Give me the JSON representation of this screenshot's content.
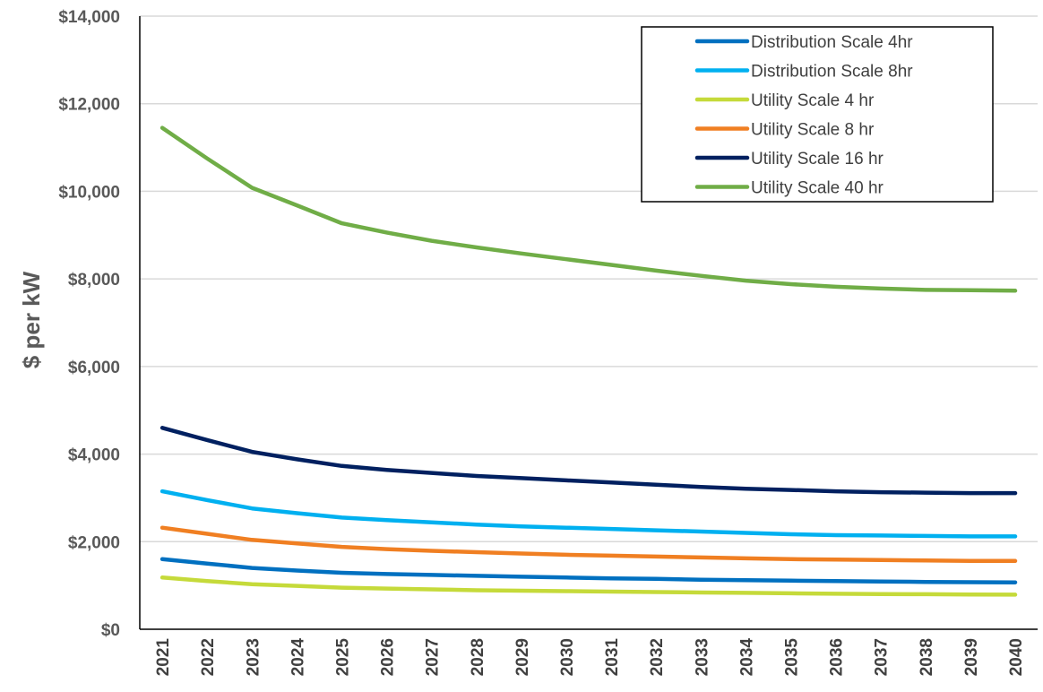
{
  "chart_data": {
    "type": "line",
    "title": "",
    "xlabel": "",
    "ylabel": "$ per kW",
    "ylim": [
      0,
      14000
    ],
    "y_ticks": [
      0,
      2000,
      4000,
      6000,
      8000,
      10000,
      12000,
      14000
    ],
    "y_tick_labels": [
      "$0",
      "$2,000",
      "$4,000",
      "$6,000",
      "$8,000",
      "$10,000",
      "$12,000",
      "$14,000"
    ],
    "x": [
      "2021",
      "2022",
      "2023",
      "2024",
      "2025",
      "2026",
      "2027",
      "2028",
      "2029",
      "2030",
      "2031",
      "2032",
      "2033",
      "2034",
      "2035",
      "2036",
      "2037",
      "2038",
      "2039",
      "2040"
    ],
    "grid": true,
    "legend_position": "top-right",
    "series": [
      {
        "name": "Distribution Scale 4hr",
        "color": "#0070C0",
        "values": [
          1600,
          1500,
          1400,
          1340,
          1290,
          1260,
          1240,
          1220,
          1200,
          1180,
          1160,
          1150,
          1130,
          1120,
          1110,
          1100,
          1090,
          1080,
          1075,
          1070
        ]
      },
      {
        "name": "Distribution Scale 8hr",
        "color": "#00B0F0",
        "values": [
          3150,
          2950,
          2760,
          2650,
          2550,
          2490,
          2440,
          2390,
          2350,
          2320,
          2290,
          2260,
          2230,
          2200,
          2170,
          2150,
          2140,
          2130,
          2120,
          2120
        ]
      },
      {
        "name": "Utility Scale 4 hr",
        "color": "#C5DA3A",
        "values": [
          1180,
          1100,
          1030,
          990,
          950,
          930,
          910,
          890,
          880,
          870,
          860,
          850,
          840,
          830,
          820,
          810,
          805,
          800,
          795,
          790
        ]
      },
      {
        "name": "Utility Scale 8 hr",
        "color": "#F07F22",
        "values": [
          2320,
          2180,
          2040,
          1960,
          1880,
          1830,
          1790,
          1760,
          1730,
          1700,
          1680,
          1660,
          1640,
          1620,
          1600,
          1590,
          1580,
          1570,
          1560,
          1560
        ]
      },
      {
        "name": "Utility Scale 16 hr",
        "color": "#002060",
        "values": [
          4600,
          4320,
          4050,
          3880,
          3730,
          3640,
          3570,
          3500,
          3450,
          3400,
          3350,
          3300,
          3250,
          3210,
          3180,
          3150,
          3130,
          3120,
          3110,
          3110
        ]
      },
      {
        "name": "Utility Scale 40 hr",
        "color": "#70AD47",
        "values": [
          11450,
          10750,
          10080,
          9680,
          9270,
          9060,
          8870,
          8720,
          8580,
          8450,
          8320,
          8190,
          8070,
          7960,
          7880,
          7820,
          7780,
          7750,
          7740,
          7730
        ]
      }
    ]
  }
}
